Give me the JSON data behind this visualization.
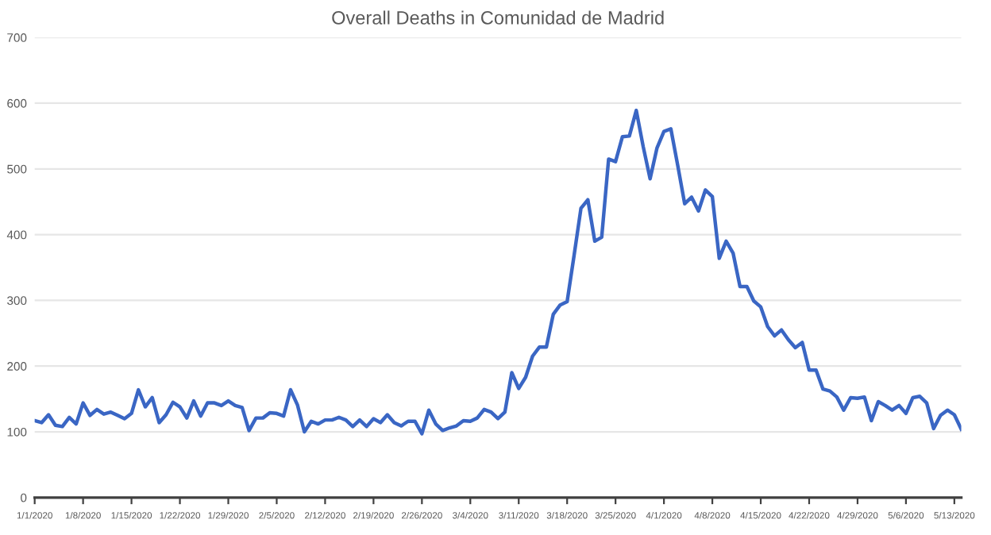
{
  "chart_data": {
    "type": "line",
    "title": "Overall Deaths in Comunidad de Madrid",
    "x": [
      "2020-01-01",
      "2020-01-02",
      "2020-01-03",
      "2020-01-04",
      "2020-01-05",
      "2020-01-06",
      "2020-01-07",
      "2020-01-08",
      "2020-01-09",
      "2020-01-10",
      "2020-01-11",
      "2020-01-12",
      "2020-01-13",
      "2020-01-14",
      "2020-01-15",
      "2020-01-16",
      "2020-01-17",
      "2020-01-18",
      "2020-01-19",
      "2020-01-20",
      "2020-01-21",
      "2020-01-22",
      "2020-01-23",
      "2020-01-24",
      "2020-01-25",
      "2020-01-26",
      "2020-01-27",
      "2020-01-28",
      "2020-01-29",
      "2020-01-30",
      "2020-01-31",
      "2020-02-01",
      "2020-02-02",
      "2020-02-03",
      "2020-02-04",
      "2020-02-05",
      "2020-02-06",
      "2020-02-07",
      "2020-02-08",
      "2020-02-09",
      "2020-02-10",
      "2020-02-11",
      "2020-02-12",
      "2020-02-13",
      "2020-02-14",
      "2020-02-15",
      "2020-02-16",
      "2020-02-17",
      "2020-02-18",
      "2020-02-19",
      "2020-02-20",
      "2020-02-21",
      "2020-02-22",
      "2020-02-23",
      "2020-02-24",
      "2020-02-25",
      "2020-02-26",
      "2020-02-27",
      "2020-02-28",
      "2020-02-29",
      "2020-03-01",
      "2020-03-02",
      "2020-03-03",
      "2020-03-04",
      "2020-03-05",
      "2020-03-06",
      "2020-03-07",
      "2020-03-08",
      "2020-03-09",
      "2020-03-10",
      "2020-03-11",
      "2020-03-12",
      "2020-03-13",
      "2020-03-14",
      "2020-03-15",
      "2020-03-16",
      "2020-03-17",
      "2020-03-18",
      "2020-03-19",
      "2020-03-20",
      "2020-03-21",
      "2020-03-22",
      "2020-03-23",
      "2020-03-24",
      "2020-03-25",
      "2020-03-26",
      "2020-03-27",
      "2020-03-28",
      "2020-03-29",
      "2020-03-30",
      "2020-03-31",
      "2020-04-01",
      "2020-04-02",
      "2020-04-03",
      "2020-04-04",
      "2020-04-05",
      "2020-04-06",
      "2020-04-07",
      "2020-04-08",
      "2020-04-09",
      "2020-04-10",
      "2020-04-11",
      "2020-04-12",
      "2020-04-13",
      "2020-04-14",
      "2020-04-15",
      "2020-04-16",
      "2020-04-17",
      "2020-04-18",
      "2020-04-19",
      "2020-04-20",
      "2020-04-21",
      "2020-04-22",
      "2020-04-23",
      "2020-04-24",
      "2020-04-25",
      "2020-04-26",
      "2020-04-27",
      "2020-04-28",
      "2020-04-29",
      "2020-04-30",
      "2020-05-01",
      "2020-05-02",
      "2020-05-03",
      "2020-05-04",
      "2020-05-05",
      "2020-05-06",
      "2020-05-07",
      "2020-05-08",
      "2020-05-09",
      "2020-05-10",
      "2020-05-11",
      "2020-05-12",
      "2020-05-13",
      "2020-05-14"
    ],
    "series": [
      {
        "color": "#3a66c4",
        "values": [
          117,
          114,
          126,
          110,
          108,
          122,
          112,
          144,
          125,
          134,
          127,
          130,
          125,
          120,
          128,
          164,
          138,
          152,
          114,
          126,
          145,
          138,
          121,
          147,
          124,
          144,
          144,
          140,
          147,
          140,
          137,
          102,
          121,
          121,
          129,
          128,
          124,
          164,
          141,
          100,
          116,
          112,
          118,
          118,
          122,
          118,
          108,
          118,
          108,
          120,
          114,
          126,
          114,
          109,
          116,
          116,
          97,
          133,
          112,
          102,
          106,
          109,
          117,
          116,
          121,
          134,
          130,
          120,
          130,
          190,
          166,
          183,
          215,
          229,
          229,
          279,
          293,
          298,
          368,
          440,
          453,
          390,
          396,
          515,
          511,
          549,
          550,
          589,
          534,
          485,
          532,
          557,
          561,
          505,
          447,
          457,
          436,
          468,
          458,
          364,
          390,
          372,
          321,
          321,
          299,
          290,
          260,
          246,
          255,
          240,
          228,
          236,
          194,
          194,
          165,
          162,
          153,
          133,
          152,
          151,
          153,
          117,
          146,
          140,
          133,
          140,
          128,
          152,
          154,
          144,
          105,
          125,
          133,
          126,
          104
        ]
      }
    ],
    "xlim": [
      "2020-01-01",
      "2020-05-14"
    ],
    "xticks": [
      {
        "value": "2020-01-01",
        "label": "1/1/2020"
      },
      {
        "value": "2020-01-08",
        "label": "1/8/2020"
      },
      {
        "value": "2020-01-15",
        "label": "1/15/2020"
      },
      {
        "value": "2020-01-22",
        "label": "1/22/2020"
      },
      {
        "value": "2020-01-29",
        "label": "1/29/2020"
      },
      {
        "value": "2020-02-05",
        "label": "2/5/2020"
      },
      {
        "value": "2020-02-12",
        "label": "2/12/2020"
      },
      {
        "value": "2020-02-19",
        "label": "2/19/2020"
      },
      {
        "value": "2020-02-26",
        "label": "2/26/2020"
      },
      {
        "value": "2020-03-04",
        "label": "3/4/2020"
      },
      {
        "value": "2020-03-11",
        "label": "3/11/2020"
      },
      {
        "value": "2020-03-18",
        "label": "3/18/2020"
      },
      {
        "value": "2020-03-25",
        "label": "3/25/2020"
      },
      {
        "value": "2020-04-01",
        "label": "4/1/2020"
      },
      {
        "value": "2020-04-08",
        "label": "4/8/2020"
      },
      {
        "value": "2020-04-15",
        "label": "4/15/2020"
      },
      {
        "value": "2020-04-22",
        "label": "4/22/2020"
      },
      {
        "value": "2020-04-29",
        "label": "4/29/2020"
      },
      {
        "value": "2020-05-06",
        "label": "5/6/2020"
      },
      {
        "value": "2020-05-13",
        "label": "5/13/2020"
      }
    ],
    "ylim": [
      0,
      700
    ],
    "yticks": [
      0,
      100,
      200,
      300,
      400,
      500,
      600,
      700
    ],
    "grid": "y",
    "marker": "none",
    "line_style": "solid"
  }
}
